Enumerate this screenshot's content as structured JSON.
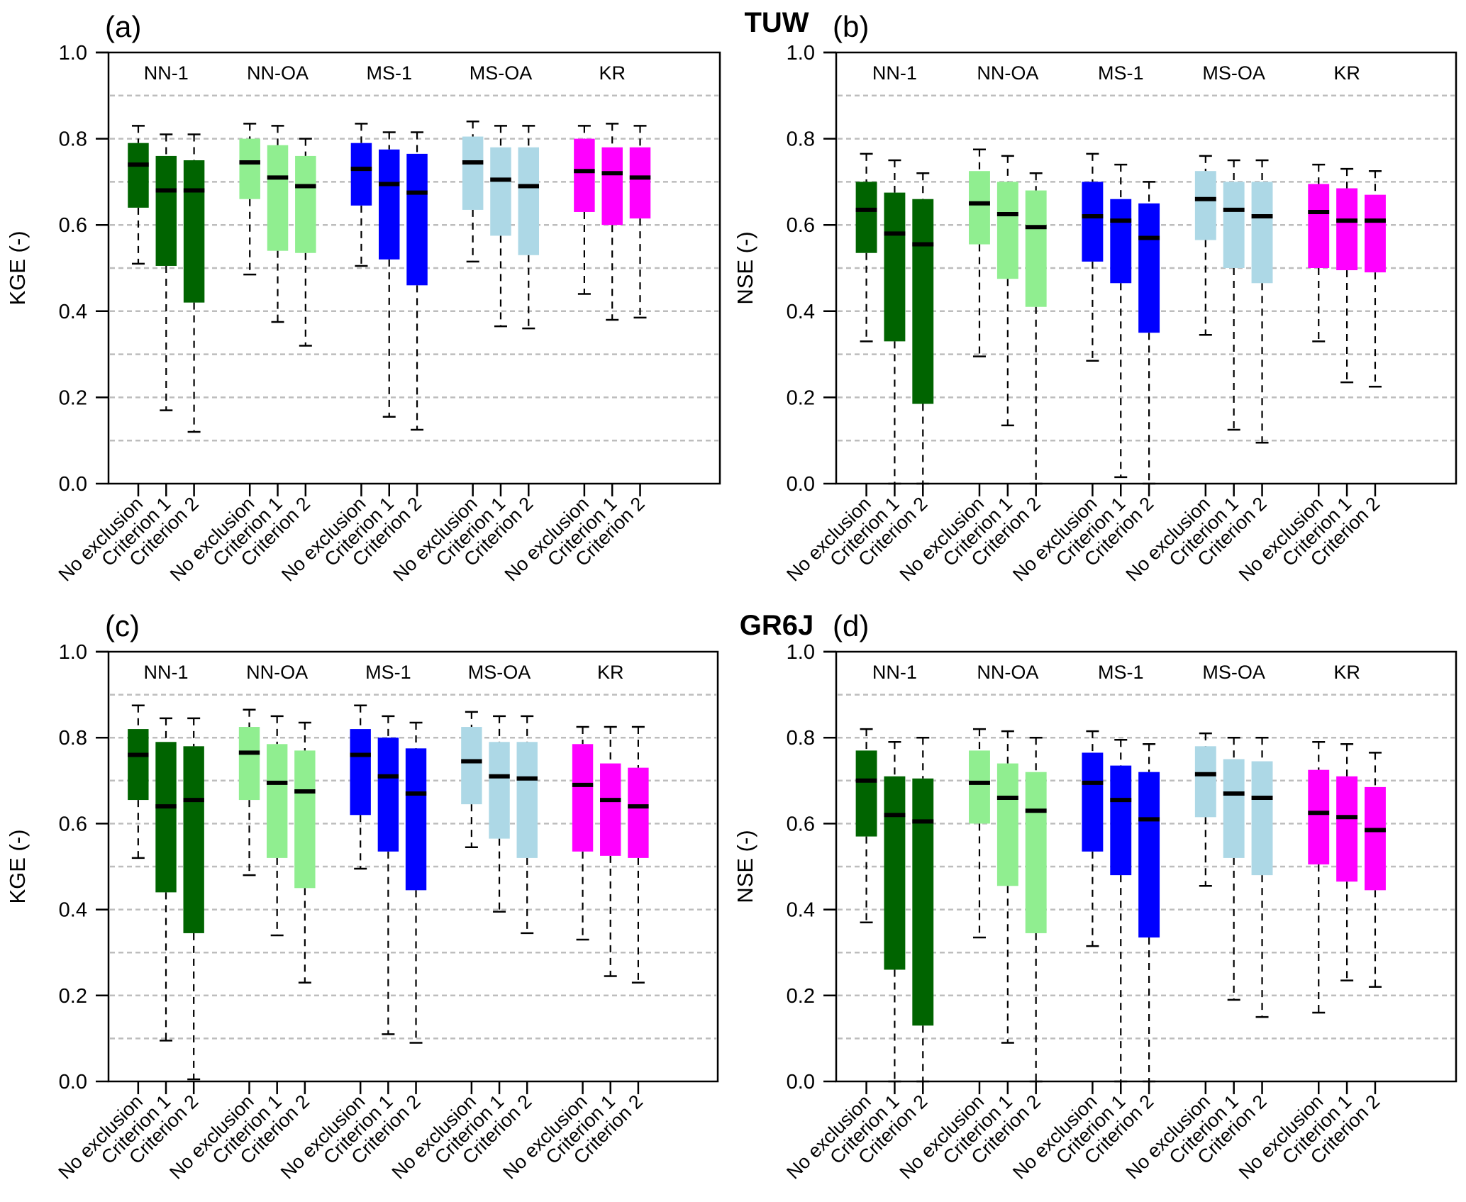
{
  "chart_data": {
    "type": "boxplot",
    "figure_rows": [
      {
        "model": "TUW"
      },
      {
        "model": "GR6J"
      }
    ],
    "categories": [
      "No exclusion",
      "Criterion 1",
      "Criterion 2"
    ],
    "groups": [
      "NN-1",
      "NN-OA",
      "MS-1",
      "MS-OA",
      "KR"
    ],
    "group_colors": {
      "NN-1": "#006400",
      "NN-OA": "#90EE90",
      "MS-1": "#0000FF",
      "MS-OA": "#ADD8E6",
      "KR": "#FF00FF"
    },
    "grid": "dashed horizontal every 0.1",
    "panels": [
      {
        "id": "a",
        "label": "(a)",
        "model": "TUW",
        "ylabel": "KGE (-)",
        "ylim": [
          0,
          1
        ],
        "yticks": [
          "0.0",
          "0.2",
          "0.4",
          "0.6",
          "0.8",
          "1.0"
        ],
        "series": [
          {
            "group": "NN-1",
            "boxes": [
              {
                "category": "No exclusion",
                "whisker_low": 0.51,
                "q1": 0.64,
                "median": 0.74,
                "q3": 0.79,
                "whisker_high": 0.83
              },
              {
                "category": "Criterion 1",
                "whisker_low": 0.17,
                "q1": 0.505,
                "median": 0.68,
                "q3": 0.76,
                "whisker_high": 0.81
              },
              {
                "category": "Criterion 2",
                "whisker_low": 0.12,
                "q1": 0.42,
                "median": 0.68,
                "q3": 0.75,
                "whisker_high": 0.81
              }
            ]
          },
          {
            "group": "NN-OA",
            "boxes": [
              {
                "category": "No exclusion",
                "whisker_low": 0.485,
                "q1": 0.66,
                "median": 0.745,
                "q3": 0.8,
                "whisker_high": 0.835
              },
              {
                "category": "Criterion 1",
                "whisker_low": 0.375,
                "q1": 0.54,
                "median": 0.71,
                "q3": 0.785,
                "whisker_high": 0.83
              },
              {
                "category": "Criterion 2",
                "whisker_low": 0.32,
                "q1": 0.535,
                "median": 0.69,
                "q3": 0.76,
                "whisker_high": 0.8
              }
            ]
          },
          {
            "group": "MS-1",
            "boxes": [
              {
                "category": "No exclusion",
                "whisker_low": 0.505,
                "q1": 0.645,
                "median": 0.73,
                "q3": 0.79,
                "whisker_high": 0.835
              },
              {
                "category": "Criterion 1",
                "whisker_low": 0.155,
                "q1": 0.52,
                "median": 0.695,
                "q3": 0.775,
                "whisker_high": 0.815
              },
              {
                "category": "Criterion 2",
                "whisker_low": 0.125,
                "q1": 0.46,
                "median": 0.675,
                "q3": 0.765,
                "whisker_high": 0.815
              }
            ]
          },
          {
            "group": "MS-OA",
            "boxes": [
              {
                "category": "No exclusion",
                "whisker_low": 0.515,
                "q1": 0.635,
                "median": 0.745,
                "q3": 0.805,
                "whisker_high": 0.84
              },
              {
                "category": "Criterion 1",
                "whisker_low": 0.365,
                "q1": 0.575,
                "median": 0.705,
                "q3": 0.78,
                "whisker_high": 0.83
              },
              {
                "category": "Criterion 2",
                "whisker_low": 0.36,
                "q1": 0.53,
                "median": 0.69,
                "q3": 0.78,
                "whisker_high": 0.83
              }
            ]
          },
          {
            "group": "KR",
            "boxes": [
              {
                "category": "No exclusion",
                "whisker_low": 0.44,
                "q1": 0.63,
                "median": 0.725,
                "q3": 0.8,
                "whisker_high": 0.83
              },
              {
                "category": "Criterion 1",
                "whisker_low": 0.38,
                "q1": 0.6,
                "median": 0.72,
                "q3": 0.78,
                "whisker_high": 0.835
              },
              {
                "category": "Criterion 2",
                "whisker_low": 0.385,
                "q1": 0.615,
                "median": 0.71,
                "q3": 0.78,
                "whisker_high": 0.83
              }
            ]
          }
        ]
      },
      {
        "id": "b",
        "label": "(b)",
        "model": "TUW",
        "ylabel": "NSE (-)",
        "ylim": [
          0,
          1
        ],
        "yticks": [
          "0.0",
          "0.2",
          "0.4",
          "0.6",
          "0.8",
          "1.0"
        ],
        "series": [
          {
            "group": "NN-1",
            "boxes": [
              {
                "category": "No exclusion",
                "whisker_low": 0.33,
                "q1": 0.535,
                "median": 0.635,
                "q3": 0.7,
                "whisker_high": 0.765
              },
              {
                "category": "Criterion 1",
                "whisker_low": 0.0,
                "q1": 0.33,
                "median": 0.58,
                "q3": 0.675,
                "whisker_high": 0.75
              },
              {
                "category": "Criterion 2",
                "whisker_low": 0.0,
                "q1": 0.185,
                "median": 0.555,
                "q3": 0.66,
                "whisker_high": 0.72
              }
            ]
          },
          {
            "group": "NN-OA",
            "boxes": [
              {
                "category": "No exclusion",
                "whisker_low": 0.295,
                "q1": 0.555,
                "median": 0.65,
                "q3": 0.725,
                "whisker_high": 0.775
              },
              {
                "category": "Criterion 1",
                "whisker_low": 0.135,
                "q1": 0.475,
                "median": 0.625,
                "q3": 0.7,
                "whisker_high": 0.76
              },
              {
                "category": "Criterion 2",
                "whisker_low": 0.0,
                "q1": 0.41,
                "median": 0.595,
                "q3": 0.68,
                "whisker_high": 0.72
              }
            ]
          },
          {
            "group": "MS-1",
            "boxes": [
              {
                "category": "No exclusion",
                "whisker_low": 0.285,
                "q1": 0.515,
                "median": 0.62,
                "q3": 0.7,
                "whisker_high": 0.765
              },
              {
                "category": "Criterion 1",
                "whisker_low": 0.015,
                "q1": 0.465,
                "median": 0.61,
                "q3": 0.66,
                "whisker_high": 0.74
              },
              {
                "category": "Criterion 2",
                "whisker_low": 0.0,
                "q1": 0.35,
                "median": 0.57,
                "q3": 0.65,
                "whisker_high": 0.7
              }
            ]
          },
          {
            "group": "MS-OA",
            "boxes": [
              {
                "category": "No exclusion",
                "whisker_low": 0.345,
                "q1": 0.565,
                "median": 0.66,
                "q3": 0.725,
                "whisker_high": 0.76
              },
              {
                "category": "Criterion 1",
                "whisker_low": 0.125,
                "q1": 0.5,
                "median": 0.635,
                "q3": 0.7,
                "whisker_high": 0.75
              },
              {
                "category": "Criterion 2",
                "whisker_low": 0.095,
                "q1": 0.465,
                "median": 0.62,
                "q3": 0.7,
                "whisker_high": 0.75
              }
            ]
          },
          {
            "group": "KR",
            "boxes": [
              {
                "category": "No exclusion",
                "whisker_low": 0.33,
                "q1": 0.5,
                "median": 0.63,
                "q3": 0.695,
                "whisker_high": 0.74
              },
              {
                "category": "Criterion 1",
                "whisker_low": 0.235,
                "q1": 0.495,
                "median": 0.61,
                "q3": 0.685,
                "whisker_high": 0.73
              },
              {
                "category": "Criterion 2",
                "whisker_low": 0.225,
                "q1": 0.49,
                "median": 0.61,
                "q3": 0.67,
                "whisker_high": 0.725
              }
            ]
          }
        ]
      },
      {
        "id": "c",
        "label": "(c)",
        "model": "GR6J",
        "ylabel": "KGE (-)",
        "ylim": [
          0,
          1
        ],
        "yticks": [
          "0.0",
          "0.2",
          "0.4",
          "0.6",
          "0.8",
          "1.0"
        ],
        "series": [
          {
            "group": "NN-1",
            "boxes": [
              {
                "category": "No exclusion",
                "whisker_low": 0.52,
                "q1": 0.655,
                "median": 0.76,
                "q3": 0.82,
                "whisker_high": 0.875
              },
              {
                "category": "Criterion 1",
                "whisker_low": 0.095,
                "q1": 0.44,
                "median": 0.64,
                "q3": 0.79,
                "whisker_high": 0.845
              },
              {
                "category": "Criterion 2",
                "whisker_low": 0.005,
                "q1": 0.345,
                "median": 0.655,
                "q3": 0.78,
                "whisker_high": 0.845
              }
            ]
          },
          {
            "group": "NN-OA",
            "boxes": [
              {
                "category": "No exclusion",
                "whisker_low": 0.48,
                "q1": 0.655,
                "median": 0.765,
                "q3": 0.825,
                "whisker_high": 0.865
              },
              {
                "category": "Criterion 1",
                "whisker_low": 0.34,
                "q1": 0.52,
                "median": 0.695,
                "q3": 0.785,
                "whisker_high": 0.85
              },
              {
                "category": "Criterion 2",
                "whisker_low": 0.23,
                "q1": 0.45,
                "median": 0.675,
                "q3": 0.77,
                "whisker_high": 0.835
              }
            ]
          },
          {
            "group": "MS-1",
            "boxes": [
              {
                "category": "No exclusion",
                "whisker_low": 0.495,
                "q1": 0.62,
                "median": 0.76,
                "q3": 0.82,
                "whisker_high": 0.875
              },
              {
                "category": "Criterion 1",
                "whisker_low": 0.11,
                "q1": 0.535,
                "median": 0.71,
                "q3": 0.8,
                "whisker_high": 0.85
              },
              {
                "category": "Criterion 2",
                "whisker_low": 0.09,
                "q1": 0.445,
                "median": 0.67,
                "q3": 0.775,
                "whisker_high": 0.835
              }
            ]
          },
          {
            "group": "MS-OA",
            "boxes": [
              {
                "category": "No exclusion",
                "whisker_low": 0.545,
                "q1": 0.645,
                "median": 0.745,
                "q3": 0.825,
                "whisker_high": 0.86
              },
              {
                "category": "Criterion 1",
                "whisker_low": 0.395,
                "q1": 0.565,
                "median": 0.71,
                "q3": 0.79,
                "whisker_high": 0.85
              },
              {
                "category": "Criterion 2",
                "whisker_low": 0.345,
                "q1": 0.52,
                "median": 0.705,
                "q3": 0.79,
                "whisker_high": 0.85
              }
            ]
          },
          {
            "group": "KR",
            "boxes": [
              {
                "category": "No exclusion",
                "whisker_low": 0.33,
                "q1": 0.535,
                "median": 0.69,
                "q3": 0.785,
                "whisker_high": 0.825
              },
              {
                "category": "Criterion 1",
                "whisker_low": 0.245,
                "q1": 0.525,
                "median": 0.655,
                "q3": 0.74,
                "whisker_high": 0.825
              },
              {
                "category": "Criterion 2",
                "whisker_low": 0.23,
                "q1": 0.52,
                "median": 0.64,
                "q3": 0.73,
                "whisker_high": 0.825
              }
            ]
          }
        ]
      },
      {
        "id": "d",
        "label": "(d)",
        "model": "GR6J",
        "ylabel": "NSE (-)",
        "ylim": [
          0,
          1
        ],
        "yticks": [
          "0.0",
          "0.2",
          "0.4",
          "0.6",
          "0.8",
          "1.0"
        ],
        "series": [
          {
            "group": "NN-1",
            "boxes": [
              {
                "category": "No exclusion",
                "whisker_low": 0.37,
                "q1": 0.57,
                "median": 0.7,
                "q3": 0.77,
                "whisker_high": 0.82
              },
              {
                "category": "Criterion 1",
                "whisker_low": 0.0,
                "q1": 0.26,
                "median": 0.62,
                "q3": 0.71,
                "whisker_high": 0.79
              },
              {
                "category": "Criterion 2",
                "whisker_low": 0.0,
                "q1": 0.13,
                "median": 0.605,
                "q3": 0.705,
                "whisker_high": 0.8
              }
            ]
          },
          {
            "group": "NN-OA",
            "boxes": [
              {
                "category": "No exclusion",
                "whisker_low": 0.335,
                "q1": 0.6,
                "median": 0.695,
                "q3": 0.77,
                "whisker_high": 0.82
              },
              {
                "category": "Criterion 1",
                "whisker_low": 0.09,
                "q1": 0.455,
                "median": 0.66,
                "q3": 0.74,
                "whisker_high": 0.815
              },
              {
                "category": "Criterion 2",
                "whisker_low": 0.0,
                "q1": 0.345,
                "median": 0.63,
                "q3": 0.72,
                "whisker_high": 0.8
              }
            ]
          },
          {
            "group": "MS-1",
            "boxes": [
              {
                "category": "No exclusion",
                "whisker_low": 0.315,
                "q1": 0.535,
                "median": 0.695,
                "q3": 0.765,
                "whisker_high": 0.815
              },
              {
                "category": "Criterion 1",
                "whisker_low": 0.0,
                "q1": 0.48,
                "median": 0.655,
                "q3": 0.735,
                "whisker_high": 0.795
              },
              {
                "category": "Criterion 2",
                "whisker_low": 0.0,
                "q1": 0.335,
                "median": 0.61,
                "q3": 0.72,
                "whisker_high": 0.785
              }
            ]
          },
          {
            "group": "MS-OA",
            "boxes": [
              {
                "category": "No exclusion",
                "whisker_low": 0.455,
                "q1": 0.615,
                "median": 0.715,
                "q3": 0.78,
                "whisker_high": 0.81
              },
              {
                "category": "Criterion 1",
                "whisker_low": 0.19,
                "q1": 0.52,
                "median": 0.67,
                "q3": 0.75,
                "whisker_high": 0.8
              },
              {
                "category": "Criterion 2",
                "whisker_low": 0.15,
                "q1": 0.48,
                "median": 0.66,
                "q3": 0.745,
                "whisker_high": 0.8
              }
            ]
          },
          {
            "group": "KR",
            "boxes": [
              {
                "category": "No exclusion",
                "whisker_low": 0.16,
                "q1": 0.505,
                "median": 0.625,
                "q3": 0.725,
                "whisker_high": 0.79
              },
              {
                "category": "Criterion 1",
                "whisker_low": 0.235,
                "q1": 0.465,
                "median": 0.615,
                "q3": 0.71,
                "whisker_high": 0.785
              },
              {
                "category": "Criterion 2",
                "whisker_low": 0.22,
                "q1": 0.445,
                "median": 0.585,
                "q3": 0.685,
                "whisker_high": 0.765
              }
            ]
          }
        ]
      }
    ]
  },
  "model_titles": [
    "TUW",
    "GR6J"
  ]
}
